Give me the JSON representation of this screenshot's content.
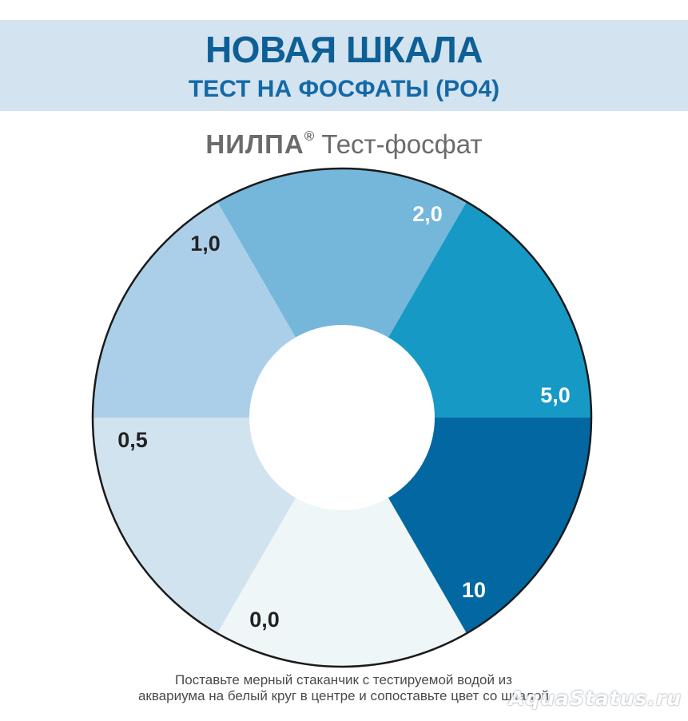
{
  "header": {
    "title": "НОВАЯ ШКАЛА",
    "subtitle": "ТЕСТ НА ФОСФАТЫ (PO4)"
  },
  "brand": {
    "name": "НИЛПА",
    "registered_mark": "®",
    "product": "Тест-фосфат"
  },
  "color_scale": {
    "segments": [
      {
        "label": "0,0",
        "color": "#eef6f7",
        "label_color": "#222222"
      },
      {
        "label": "0,5",
        "color": "#d1e3ef",
        "label_color": "#222222"
      },
      {
        "label": "1,0",
        "color": "#abcfe8",
        "label_color": "#222222"
      },
      {
        "label": "2,0",
        "color": "#74b7da",
        "label_color": "#ffffff"
      },
      {
        "label": "5,0",
        "color": "#1799c6",
        "label_color": "#ffffff"
      },
      {
        "label": "10",
        "color": "#0368a1",
        "label_color": "#ffffff"
      }
    ]
  },
  "instructions": {
    "line1": "Поставьте мерный стаканчик с тестируемой водой из",
    "line2": "аквариума на белый круг в центре и сопоставьте цвет со шкалой"
  },
  "watermark": {
    "text": "AquaStatus.ru"
  }
}
